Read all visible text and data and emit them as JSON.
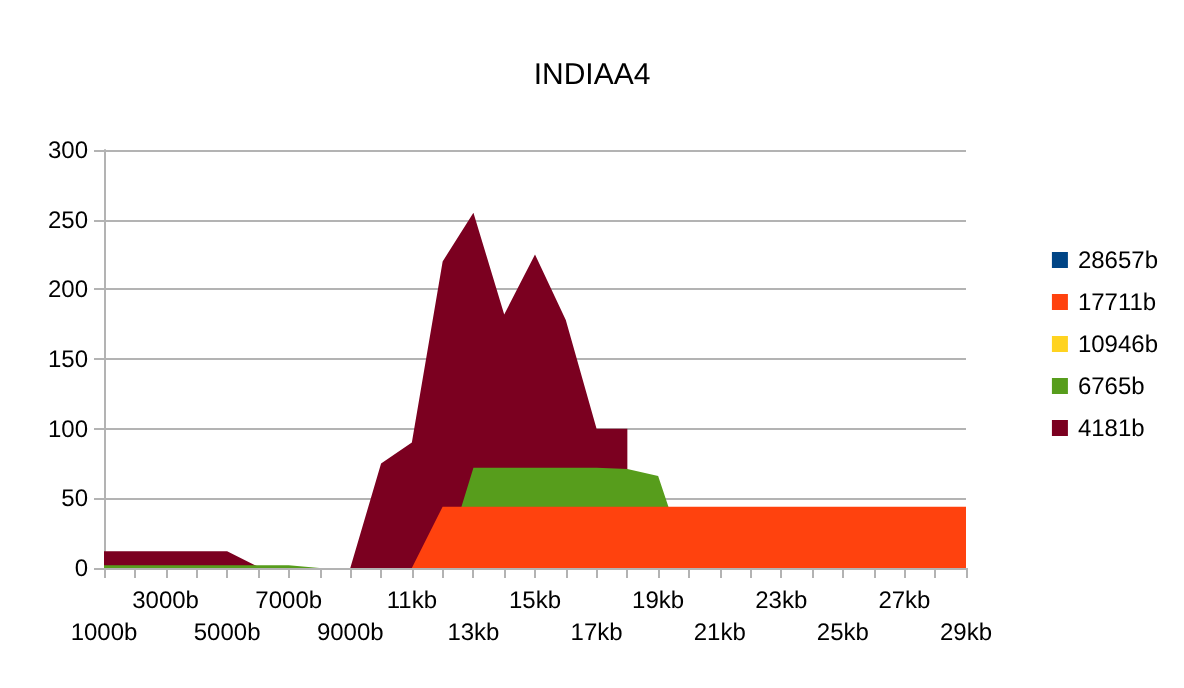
{
  "chart_data": {
    "type": "area",
    "title": "INDIAA4",
    "categories": [
      "1000b",
      null,
      "3000b",
      null,
      "5000b",
      null,
      "7000b",
      null,
      "9000b",
      null,
      "11kb",
      null,
      "13kb",
      null,
      "15kb",
      null,
      "17kb",
      null,
      "19kb",
      null,
      "21kb",
      null,
      "23kb",
      null,
      "25kb",
      null,
      "27kb",
      null,
      "29kb"
    ],
    "series": [
      {
        "name": "4181b",
        "color": "#7b0020",
        "values": [
          12,
          12,
          12,
          12,
          12,
          1,
          0,
          0,
          0,
          75,
          90,
          220,
          255,
          182,
          225,
          178,
          100,
          100,
          null,
          null,
          null,
          null,
          null,
          null,
          null,
          null,
          null,
          null,
          null
        ]
      },
      {
        "name": "6765b",
        "color": "#579d1c",
        "values": [
          2,
          2,
          2,
          2,
          2,
          2,
          2,
          0,
          0,
          0,
          0,
          0,
          72,
          72,
          72,
          72,
          72,
          71,
          66,
          0,
          null,
          null,
          null,
          null,
          null,
          null,
          null,
          null,
          null
        ]
      },
      {
        "name": "10946b",
        "color": "#ffd320",
        "values": [
          null,
          null,
          null,
          null,
          null,
          null,
          null,
          null,
          null,
          null,
          null,
          null,
          null,
          null,
          null,
          null,
          null,
          null,
          null,
          null,
          null,
          null,
          null,
          null,
          null,
          null,
          null,
          null,
          null
        ]
      },
      {
        "name": "17711b",
        "color": "#ff420e",
        "values": [
          0,
          0,
          0,
          0,
          0,
          0,
          0,
          0,
          0,
          0,
          0,
          44,
          44,
          44,
          44,
          44,
          44,
          44,
          44,
          44,
          44,
          44,
          44,
          44,
          44,
          44,
          44,
          44,
          44
        ]
      },
      {
        "name": "28657b",
        "color": "#004586",
        "values": [
          null,
          null,
          null,
          null,
          null,
          null,
          null,
          null,
          null,
          null,
          null,
          null,
          null,
          null,
          null,
          null,
          null,
          null,
          null,
          null,
          null,
          null,
          null,
          null,
          null,
          null,
          null,
          null,
          null
        ]
      }
    ],
    "ylim": [
      0,
      300
    ],
    "yticks": [
      0,
      50,
      100,
      150,
      200,
      250,
      300
    ],
    "grid": "y",
    "legend": "right",
    "marker": "none"
  }
}
